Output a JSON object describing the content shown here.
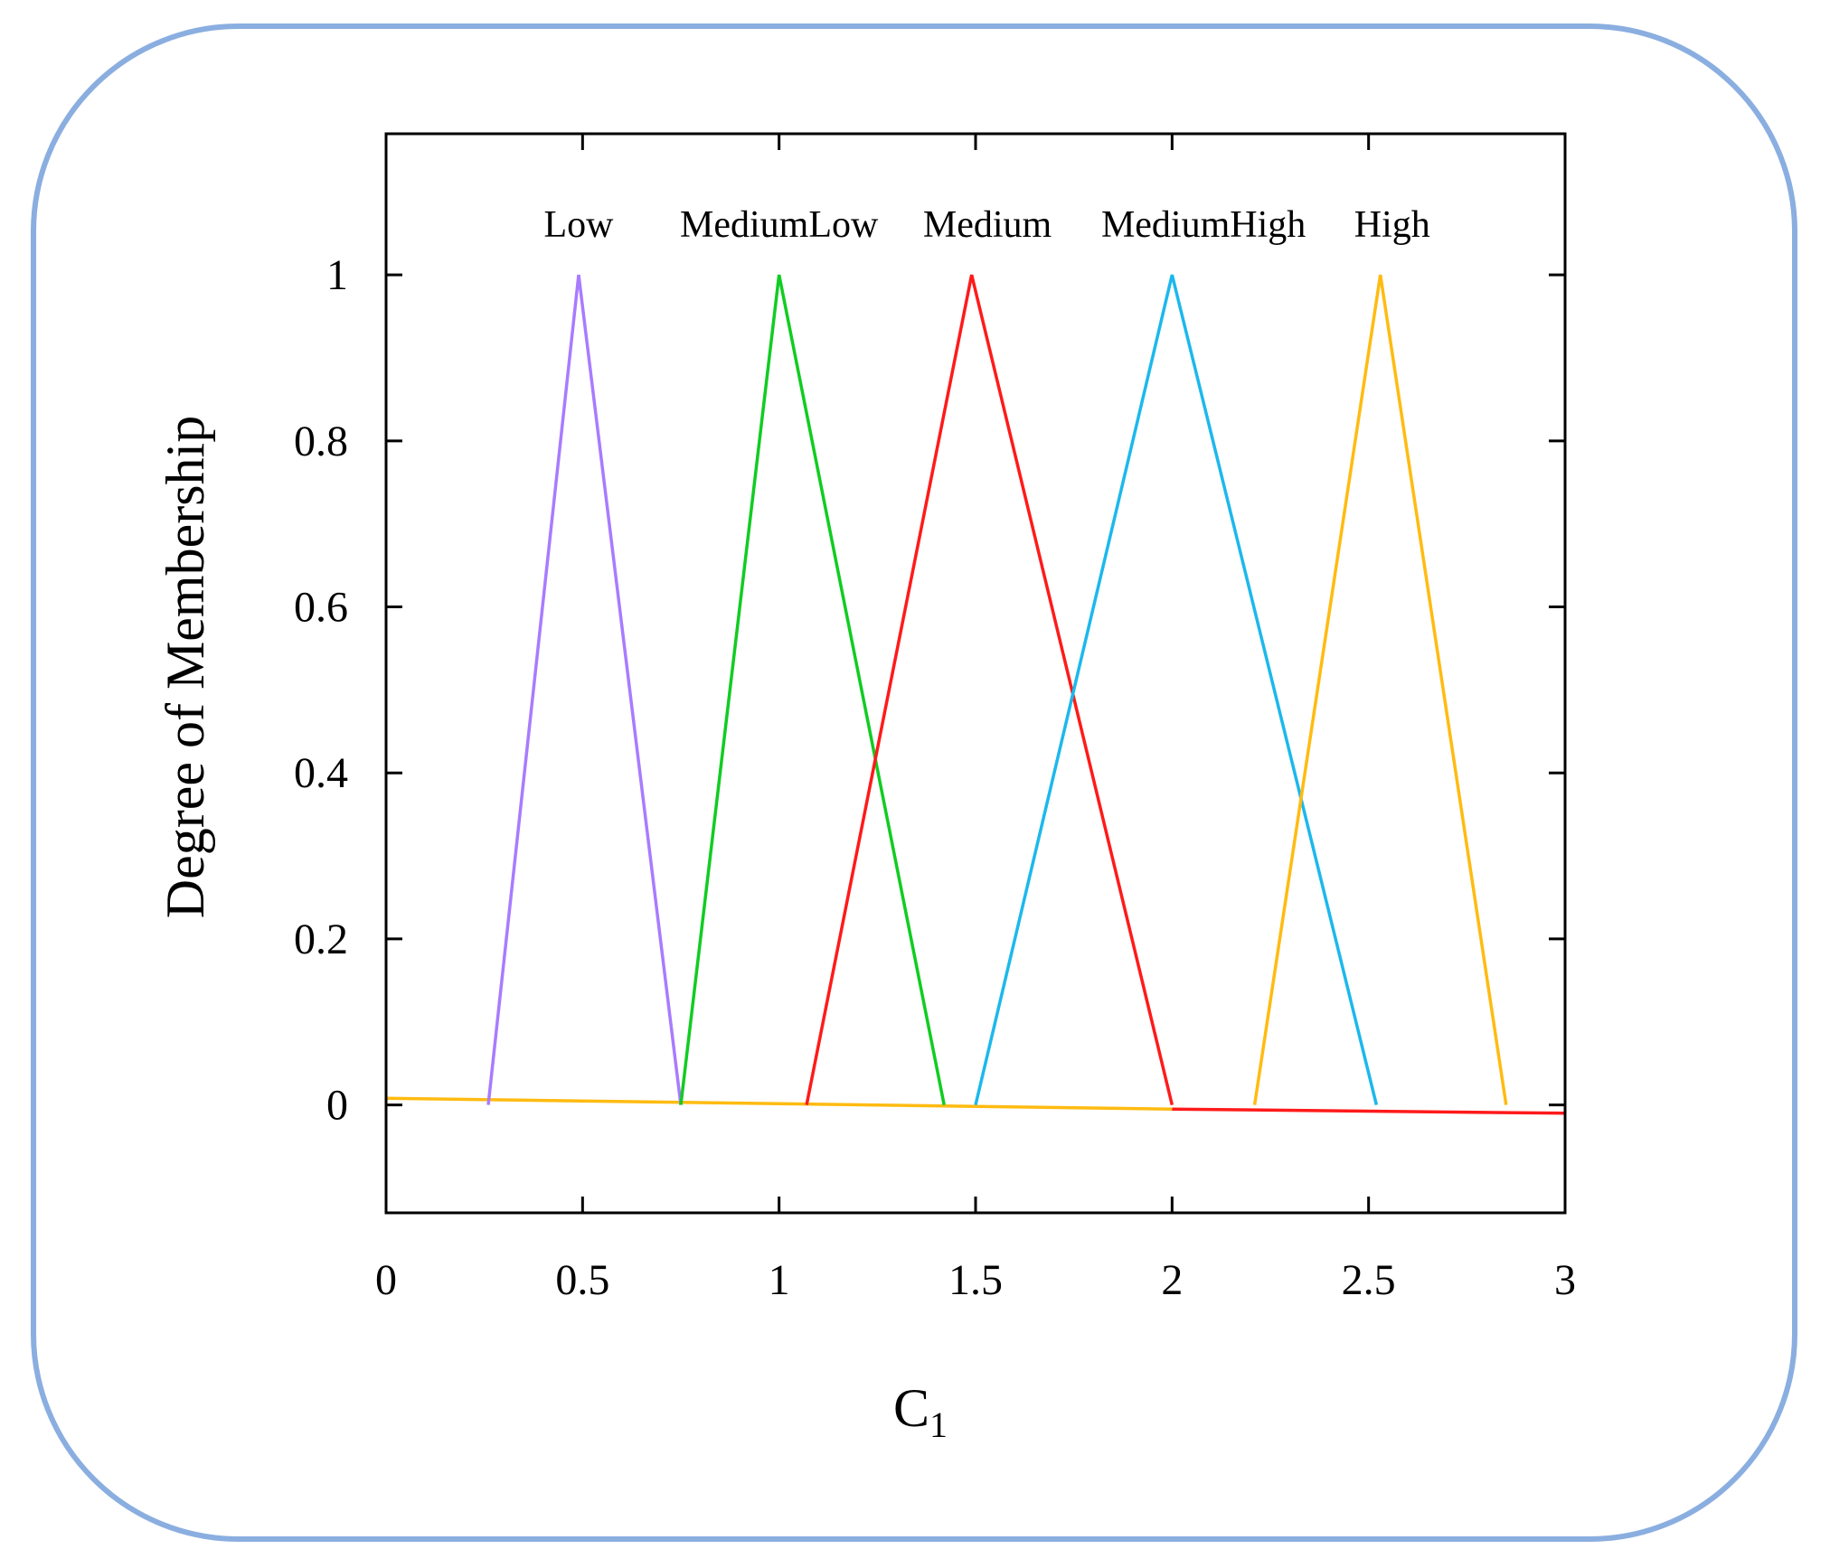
{
  "chart_data": {
    "type": "line",
    "title": "",
    "xlabel": "C",
    "xlabel_subscript": "1",
    "ylabel": "Degree of Membership",
    "xlim": [
      0,
      3
    ],
    "ylim": [
      -0.13,
      1.17
    ],
    "x_ticks": [
      {
        "value": 0,
        "label": "0"
      },
      {
        "value": 0.5,
        "label": "0.5"
      },
      {
        "value": 1,
        "label": "1"
      },
      {
        "value": 1.5,
        "label": "1.5"
      },
      {
        "value": 2,
        "label": "2"
      },
      {
        "value": 2.5,
        "label": "2.5"
      },
      {
        "value": 3,
        "label": "3"
      }
    ],
    "y_ticks": [
      {
        "value": 0,
        "label": "0"
      },
      {
        "value": 0.2,
        "label": "0.2"
      },
      {
        "value": 0.4,
        "label": "0.4"
      },
      {
        "value": 0.6,
        "label": "0.6"
      },
      {
        "value": 0.8,
        "label": "0.8"
      },
      {
        "value": 1,
        "label": "1"
      }
    ],
    "grid": false,
    "series": [
      {
        "name": "Low",
        "color": "#a97bff",
        "x": [
          0.26,
          0.49,
          0.75
        ],
        "y": [
          0,
          1,
          0
        ],
        "label_x": 0.49
      },
      {
        "name": "MediumLow",
        "color": "#11cc22",
        "x": [
          0.75,
          1.0,
          1.42
        ],
        "y": [
          0,
          1,
          0
        ],
        "label_x": 1.0
      },
      {
        "name": "Medium",
        "color": "#ff1a1a",
        "x": [
          1.07,
          1.49,
          2.0
        ],
        "y": [
          0,
          1,
          0
        ],
        "label_x": 1.53
      },
      {
        "name": "MediumHigh",
        "color": "#1cb8ec",
        "x": [
          1.5,
          2.0,
          2.52
        ],
        "y": [
          0,
          1,
          0
        ],
        "label_x": 2.08
      },
      {
        "name": "High",
        "color": "#ffbb11",
        "x": [
          2.21,
          2.53,
          2.85
        ],
        "y": [
          0,
          1,
          0
        ],
        "label_x": 2.56
      }
    ],
    "baseline": [
      {
        "color": "#ffbb11",
        "x": [
          0,
          2.0
        ],
        "y": [
          0.008,
          -0.005
        ]
      },
      {
        "color": "#ff1a1a",
        "x": [
          2.0,
          3.0
        ],
        "y": [
          -0.005,
          -0.01
        ]
      }
    ]
  }
}
